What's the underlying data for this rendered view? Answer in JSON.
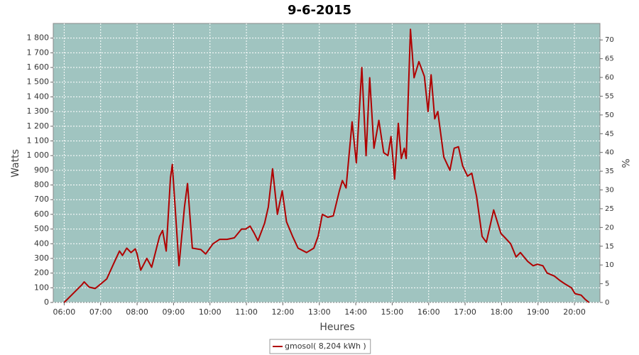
{
  "chart_data": {
    "type": "line",
    "title": "9-6-2015",
    "x_label": "Heures",
    "y_label": "Watts",
    "y2_label": "%",
    "x": [
      "06:00",
      "06:12",
      "06:29",
      "06:33",
      "06:41",
      "06:51",
      "07:00",
      "07:10",
      "07:22",
      "07:31",
      "07:36",
      "07:43",
      "07:50",
      "07:57",
      "08:00",
      "08:06",
      "08:16",
      "08:24",
      "08:37",
      "08:42",
      "08:48",
      "08:55",
      "08:58",
      "09:09",
      "09:18",
      "09:23",
      "09:31",
      "09:45",
      "09:53",
      "10:05",
      "10:16",
      "10:28",
      "10:40",
      "10:52",
      "10:59",
      "11:06",
      "11:13",
      "11:19",
      "11:30",
      "11:36",
      "11:43",
      "11:51",
      "11:59",
      "12:06",
      "12:16",
      "12:25",
      "12:39",
      "12:51",
      "12:58",
      "13:05",
      "13:14",
      "13:23",
      "13:33",
      "13:38",
      "13:44",
      "13:54",
      "14:01",
      "14:10",
      "14:17",
      "14:23",
      "14:30",
      "14:38",
      "14:46",
      "14:53",
      "14:58",
      "15:04",
      "15:10",
      "15:15",
      "15:20",
      "15:23",
      "15:30",
      "15:36",
      "15:44",
      "15:53",
      "15:59",
      "16:04",
      "16:10",
      "16:15",
      "16:25",
      "16:35",
      "16:42",
      "16:49",
      "16:56",
      "17:04",
      "17:11",
      "17:19",
      "17:28",
      "17:35",
      "17:47",
      "17:59",
      "18:06",
      "18:15",
      "18:24",
      "18:31",
      "18:43",
      "18:52",
      "18:59",
      "19:08",
      "19:15",
      "19:27",
      "19:36",
      "19:43",
      "19:55",
      "20:01",
      "20:11",
      "20:18",
      "20:24"
    ],
    "series": [
      {
        "name": "gmosol( 8,204 kWh )",
        "color": "#b00000",
        "values": [
          0,
          50,
          120,
          140,
          105,
          95,
          125,
          160,
          270,
          350,
          320,
          370,
          340,
          365,
          330,
          220,
          300,
          240,
          450,
          490,
          350,
          850,
          940,
          250,
          650,
          810,
          370,
          360,
          330,
          400,
          430,
          430,
          440,
          500,
          500,
          520,
          470,
          420,
          540,
          650,
          910,
          600,
          760,
          550,
          450,
          370,
          340,
          370,
          450,
          600,
          580,
          590,
          760,
          830,
          780,
          1230,
          950,
          1600,
          1000,
          1530,
          1050,
          1240,
          1020,
          1000,
          1130,
          840,
          1220,
          980,
          1050,
          980,
          1860,
          1530,
          1640,
          1540,
          1300,
          1550,
          1250,
          1300,
          990,
          900,
          1050,
          1060,
          930,
          860,
          880,
          720,
          450,
          410,
          630,
          470,
          440,
          400,
          310,
          340,
          280,
          250,
          260,
          250,
          200,
          180,
          150,
          130,
          100,
          60,
          50,
          20,
          0
        ]
      }
    ],
    "xlim": [
      "05:42",
      "20:42"
    ],
    "xticks": [
      "06:00",
      "07:00",
      "08:00",
      "09:00",
      "10:00",
      "11:00",
      "12:00",
      "13:00",
      "14:00",
      "15:00",
      "16:00",
      "17:00",
      "18:00",
      "19:00",
      "20:00"
    ],
    "ylim": [
      0,
      1900
    ],
    "yticks": [
      0,
      100,
      200,
      300,
      400,
      500,
      600,
      700,
      800,
      900,
      {
        "value": 1000,
        "label": "1 000"
      },
      {
        "value": 1100,
        "label": "1 100"
      },
      {
        "value": 1200,
        "label": "1 200"
      },
      {
        "value": 1300,
        "label": "1 300"
      },
      {
        "value": 1400,
        "label": "1 400"
      },
      {
        "value": 1500,
        "label": "1 500"
      },
      {
        "value": 1600,
        "label": "1 600"
      },
      {
        "value": 1700,
        "label": "1 700"
      },
      {
        "value": 1800,
        "label": "1 800"
      }
    ],
    "y2lim": [
      0,
      74.4
    ],
    "y2ticks": [
      0,
      5,
      10,
      15,
      20,
      25,
      30,
      35,
      40,
      45,
      50,
      55,
      60,
      65,
      70
    ],
    "grid": true,
    "legend": "bottom",
    "background": "#a0c4c0"
  }
}
